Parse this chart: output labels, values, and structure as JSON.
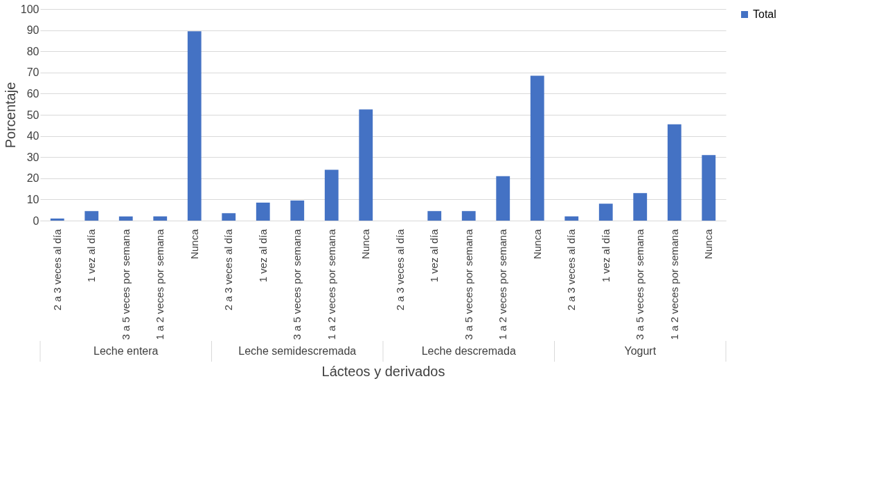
{
  "chart_data": {
    "type": "bar",
    "xlabel": "Lácteos y derivados",
    "ylabel": "Porcentaje",
    "categories": [
      "2 a 3 veces al día",
      "1 vez al día",
      "3 a 5 veces por semana",
      "1 a 2 veces por semana",
      "Nunca",
      "2 a 3 veces al día",
      "1 vez al día",
      "3 a 5 veces por semana",
      "1 a 2 veces por semana",
      "Nunca",
      "2 a 3 veces al día",
      "1 vez al día",
      "3 a 5 veces por semana",
      "1 a 2 veces por semana",
      "Nunca",
      "2 a 3 veces al día",
      "1 vez al día",
      "3 a 5 veces por semana",
      "1 a 2 veces por semana",
      "Nunca"
    ],
    "series": [
      {
        "name": "Total",
        "color": "#4472c4",
        "values": [
          1,
          4.5,
          2,
          2,
          89.5,
          3.5,
          8.5,
          9.5,
          24,
          52.5,
          0,
          4.5,
          4.5,
          21,
          68.5,
          2,
          8,
          13,
          45.5,
          31
        ]
      }
    ],
    "annotations": [
      "Leche entera",
      "Leche semidescremada",
      "Leche descremada",
      "Yogurt"
    ],
    "ylim": [
      0,
      100
    ],
    "yticks": [
      0,
      10,
      20,
      30,
      40,
      50,
      60,
      70,
      80,
      90,
      100
    ],
    "grid": "y",
    "legend": "right"
  }
}
